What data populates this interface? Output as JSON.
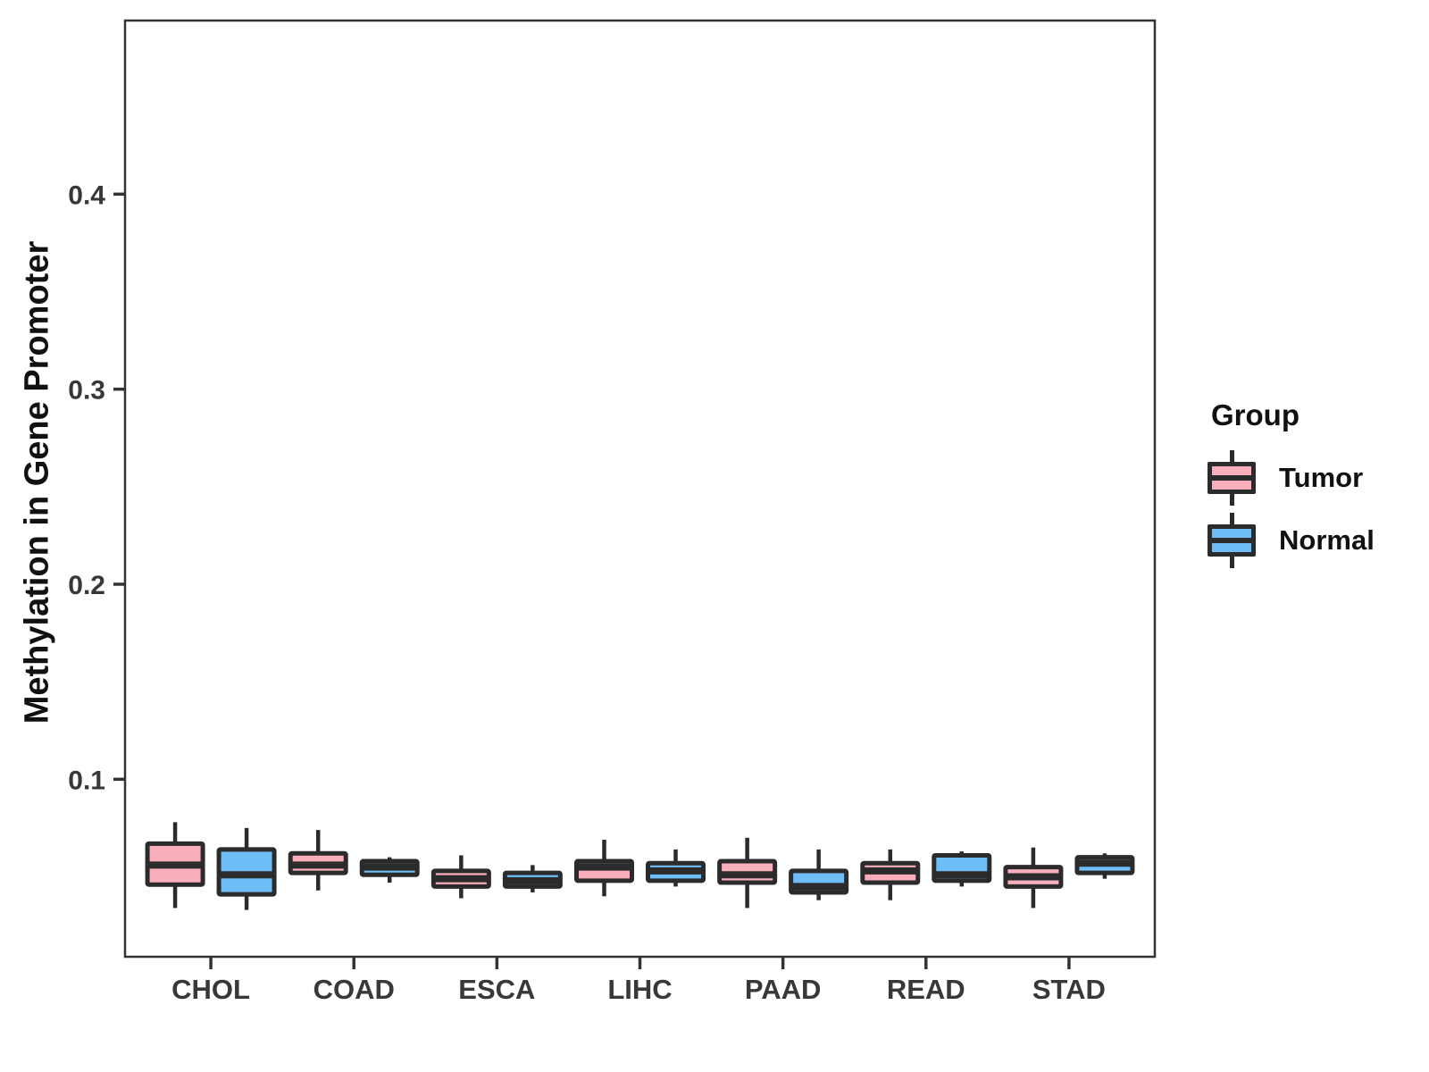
{
  "figure": {
    "background": "#ffffff"
  },
  "chart_data": {
    "type": "boxplot",
    "title": "",
    "xlabel": "",
    "ylabel": "Methylation in Gene Promoter",
    "categories": [
      "CHOL",
      "COAD",
      "ESCA",
      "LIHC",
      "PAAD",
      "READ",
      "STAD"
    ],
    "y_axis": {
      "tick_labels": [
        "0.1",
        "0.2",
        "0.3",
        "0.4"
      ],
      "tick_values": [
        0.1,
        0.2,
        0.3,
        0.4
      ],
      "range": [
        0.009,
        0.489
      ]
    },
    "grid": "off",
    "legend": {
      "title": "Group",
      "position": "right",
      "entries": [
        {
          "label": "Tumor",
          "color": "#F9AEBC"
        },
        {
          "label": "Normal",
          "color": "#6FBDF7"
        }
      ]
    },
    "colors": {
      "box_border": "#2b2b2b",
      "panel_border": "#333333",
      "tick_label": "#383838",
      "axis_title": "#111111"
    },
    "series": [
      {
        "name": "Tumor",
        "color": "#F9AEBC",
        "boxes": [
          {
            "category": "CHOL",
            "whisker_low": 0.034,
            "q1": 0.046,
            "median": 0.056,
            "q3": 0.067,
            "whisker_high": 0.078
          },
          {
            "category": "COAD",
            "whisker_low": 0.043,
            "q1": 0.052,
            "median": 0.056,
            "q3": 0.062,
            "whisker_high": 0.074
          },
          {
            "category": "ESCA",
            "whisker_low": 0.039,
            "q1": 0.045,
            "median": 0.049,
            "q3": 0.053,
            "whisker_high": 0.061
          },
          {
            "category": "LIHC",
            "whisker_low": 0.04,
            "q1": 0.048,
            "median": 0.055,
            "q3": 0.058,
            "whisker_high": 0.069
          },
          {
            "category": "PAAD",
            "whisker_low": 0.034,
            "q1": 0.047,
            "median": 0.051,
            "q3": 0.058,
            "whisker_high": 0.07
          },
          {
            "category": "READ",
            "whisker_low": 0.038,
            "q1": 0.047,
            "median": 0.053,
            "q3": 0.057,
            "whisker_high": 0.064
          },
          {
            "category": "STAD",
            "whisker_low": 0.034,
            "q1": 0.045,
            "median": 0.05,
            "q3": 0.055,
            "whisker_high": 0.065
          }
        ]
      },
      {
        "name": "Normal",
        "color": "#6FBDF7",
        "boxes": [
          {
            "category": "CHOL",
            "whisker_low": 0.033,
            "q1": 0.041,
            "median": 0.051,
            "q3": 0.064,
            "whisker_high": 0.075
          },
          {
            "category": "COAD",
            "whisker_low": 0.047,
            "q1": 0.051,
            "median": 0.055,
            "q3": 0.058,
            "whisker_high": 0.06
          },
          {
            "category": "ESCA",
            "whisker_low": 0.042,
            "q1": 0.045,
            "median": 0.048,
            "q3": 0.052,
            "whisker_high": 0.056
          },
          {
            "category": "LIHC",
            "whisker_low": 0.045,
            "q1": 0.048,
            "median": 0.053,
            "q3": 0.057,
            "whisker_high": 0.064
          },
          {
            "category": "PAAD",
            "whisker_low": 0.038,
            "q1": 0.042,
            "median": 0.045,
            "q3": 0.053,
            "whisker_high": 0.064
          },
          {
            "category": "READ",
            "whisker_low": 0.045,
            "q1": 0.048,
            "median": 0.051,
            "q3": 0.061,
            "whisker_high": 0.063
          },
          {
            "category": "STAD",
            "whisker_low": 0.049,
            "q1": 0.052,
            "median": 0.057,
            "q3": 0.06,
            "whisker_high": 0.062
          }
        ]
      }
    ]
  }
}
